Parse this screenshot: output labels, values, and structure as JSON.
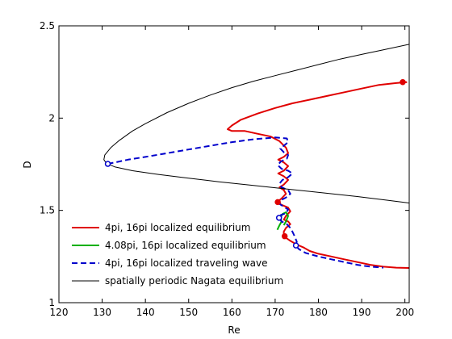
{
  "chart_data": {
    "type": "line",
    "title": "",
    "xlabel": "Re",
    "ylabel": "D",
    "xlim": [
      120,
      201
    ],
    "ylim": [
      1,
      2.5
    ],
    "xticks": [
      120,
      130,
      140,
      150,
      160,
      170,
      180,
      190,
      200
    ],
    "yticks": [
      1,
      1.5,
      2,
      2.5
    ],
    "xtick_labels": [
      "120",
      "130",
      "140",
      "150",
      "160",
      "170",
      "180",
      "190",
      "200"
    ],
    "ytick_labels": [
      "1",
      "1.5",
      "2",
      "2.5"
    ],
    "grid": false,
    "legend_position": "bottom-left",
    "series": [
      {
        "name": "4pi, 16pi localized equilibrium",
        "color": "#e00000",
        "dash": "solid",
        "width": 2,
        "points": [
          [
            200.5,
            2.195
          ],
          [
            198,
            2.19
          ],
          [
            194,
            2.18
          ],
          [
            190,
            2.16
          ],
          [
            186,
            2.14
          ],
          [
            182,
            2.12
          ],
          [
            178,
            2.1
          ],
          [
            174,
            2.08
          ],
          [
            170,
            2.055
          ],
          [
            166,
            2.025
          ],
          [
            162,
            1.99
          ],
          [
            160,
            1.96
          ],
          [
            159,
            1.94
          ],
          [
            160,
            1.93
          ],
          [
            163,
            1.93
          ],
          [
            166,
            1.915
          ],
          [
            169,
            1.9
          ],
          [
            171,
            1.875
          ],
          [
            172.5,
            1.84
          ],
          [
            173,
            1.81
          ],
          [
            172,
            1.79
          ],
          [
            170.7,
            1.775
          ],
          [
            172,
            1.76
          ],
          [
            173,
            1.74
          ],
          [
            172,
            1.715
          ],
          [
            170.7,
            1.7
          ],
          [
            172,
            1.685
          ],
          [
            173,
            1.665
          ],
          [
            172,
            1.64
          ],
          [
            171,
            1.625
          ],
          [
            172,
            1.61
          ],
          [
            172.5,
            1.59
          ],
          [
            171.5,
            1.565
          ],
          [
            170.5,
            1.545
          ],
          [
            171.5,
            1.53
          ],
          [
            173,
            1.515
          ],
          [
            173.5,
            1.495
          ],
          [
            172.5,
            1.47
          ],
          [
            172,
            1.45
          ],
          [
            173,
            1.44
          ],
          [
            173.5,
            1.425
          ],
          [
            172.5,
            1.405
          ],
          [
            172,
            1.385
          ],
          [
            172,
            1.36
          ],
          [
            173.5,
            1.335
          ],
          [
            175,
            1.315
          ],
          [
            176.5,
            1.3
          ],
          [
            178,
            1.28
          ],
          [
            180,
            1.265
          ],
          [
            183,
            1.25
          ],
          [
            186,
            1.235
          ],
          [
            189,
            1.22
          ],
          [
            192,
            1.205
          ],
          [
            195,
            1.195
          ],
          [
            198,
            1.19
          ],
          [
            201,
            1.188
          ]
        ]
      },
      {
        "name": "4.08pi, 16pi localized equilibrium",
        "color": "#00b000",
        "dash": "solid",
        "width": 2,
        "points": [
          [
            170.5,
            1.395
          ],
          [
            171,
            1.42
          ],
          [
            171.5,
            1.44
          ],
          [
            171.2,
            1.46
          ],
          [
            171.7,
            1.48
          ],
          [
            172.5,
            1.49
          ],
          [
            173,
            1.47
          ],
          [
            172.5,
            1.44
          ],
          [
            172,
            1.42
          ]
        ]
      },
      {
        "name": "4pi, 16pi localized traveling wave",
        "color": "#0000cc",
        "dash": "dashed",
        "width": 2,
        "points": [
          [
            131.3,
            1.752
          ],
          [
            133,
            1.76
          ],
          [
            136,
            1.775
          ],
          [
            140,
            1.79
          ],
          [
            145,
            1.81
          ],
          [
            150,
            1.83
          ],
          [
            155,
            1.85
          ],
          [
            160,
            1.87
          ],
          [
            165,
            1.885
          ],
          [
            170,
            1.895
          ],
          [
            172.7,
            1.89
          ],
          [
            173,
            1.87
          ],
          [
            172,
            1.85
          ],
          [
            171.2,
            1.835
          ],
          [
            172,
            1.815
          ],
          [
            173,
            1.8
          ],
          [
            172.7,
            1.78
          ],
          [
            171.3,
            1.765
          ],
          [
            170.6,
            1.745
          ],
          [
            171.5,
            1.725
          ],
          [
            173,
            1.715
          ],
          [
            174,
            1.7
          ],
          [
            173,
            1.68
          ],
          [
            171.7,
            1.665
          ],
          [
            171,
            1.645
          ],
          [
            171.5,
            1.625
          ],
          [
            173,
            1.61
          ],
          [
            173.5,
            1.59
          ],
          [
            172.5,
            1.57
          ],
          [
            171.3,
            1.555
          ],
          [
            171,
            1.535
          ],
          [
            172,
            1.52
          ],
          [
            173,
            1.505
          ],
          [
            172.5,
            1.485
          ],
          [
            171.3,
            1.475
          ],
          [
            170.8,
            1.46
          ],
          [
            171.5,
            1.44
          ],
          [
            172.7,
            1.425
          ],
          [
            173.5,
            1.405
          ],
          [
            174,
            1.385
          ],
          [
            174.5,
            1.36
          ],
          [
            175,
            1.33
          ],
          [
            174.7,
            1.31
          ],
          [
            175.5,
            1.29
          ],
          [
            177,
            1.27
          ],
          [
            180,
            1.25
          ],
          [
            183,
            1.235
          ],
          [
            186,
            1.22
          ],
          [
            189,
            1.205
          ],
          [
            192,
            1.195
          ],
          [
            195,
            1.19
          ]
        ]
      },
      {
        "name": "spatially periodic Nagata equilibrium",
        "color": "#000000",
        "dash": "solid",
        "width": 1,
        "points": [
          [
            201,
            2.4
          ],
          [
            195,
            2.37
          ],
          [
            190,
            2.345
          ],
          [
            185,
            2.32
          ],
          [
            180,
            2.29
          ],
          [
            175,
            2.26
          ],
          [
            170,
            2.23
          ],
          [
            165,
            2.2
          ],
          [
            160,
            2.165
          ],
          [
            155,
            2.125
          ],
          [
            150,
            2.08
          ],
          [
            145,
            2.03
          ],
          [
            140,
            1.97
          ],
          [
            137,
            1.93
          ],
          [
            134,
            1.88
          ],
          [
            132,
            1.84
          ],
          [
            130.6,
            1.8
          ],
          [
            130.4,
            1.775
          ],
          [
            131,
            1.755
          ],
          [
            133,
            1.735
          ],
          [
            137,
            1.715
          ],
          [
            143,
            1.695
          ],
          [
            150,
            1.675
          ],
          [
            157,
            1.655
          ],
          [
            165,
            1.635
          ],
          [
            173,
            1.615
          ],
          [
            181,
            1.595
          ],
          [
            189,
            1.575
          ],
          [
            196,
            1.555
          ],
          [
            201,
            1.54
          ]
        ]
      }
    ],
    "markers": [
      {
        "x": 199.5,
        "y": 2.195,
        "color": "#e00000",
        "fill": "filled"
      },
      {
        "x": 170.6,
        "y": 1.545,
        "color": "#e00000",
        "fill": "filled"
      },
      {
        "x": 172.2,
        "y": 1.36,
        "color": "#e00000",
        "fill": "filled"
      },
      {
        "x": 131.3,
        "y": 1.752,
        "color": "#0000cc",
        "fill": "open"
      },
      {
        "x": 170.9,
        "y": 1.46,
        "color": "#0000cc",
        "fill": "open"
      },
      {
        "x": 174.8,
        "y": 1.31,
        "color": "#0000cc",
        "fill": "open"
      }
    ]
  }
}
